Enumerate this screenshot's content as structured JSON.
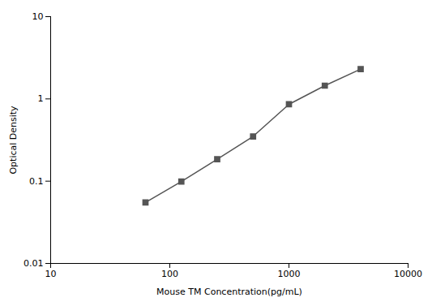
{
  "chart_data": {
    "type": "line",
    "x": [
      62.5,
      125,
      250,
      500,
      1000,
      2000,
      4000
    ],
    "values": [
      0.055,
      0.099,
      0.185,
      0.35,
      0.86,
      1.45,
      2.3
    ],
    "xlabel": "Mouse TM Concentration(pg/mL)",
    "ylabel": "Optical Density",
    "xlim": [
      10,
      10000
    ],
    "ylim": [
      0.01,
      10
    ],
    "xticks": [
      10,
      100,
      1000,
      10000
    ],
    "yticks": [
      0.01,
      0.1,
      1,
      10
    ],
    "log": true,
    "grid": false,
    "color": "#555555",
    "marker": "square"
  }
}
